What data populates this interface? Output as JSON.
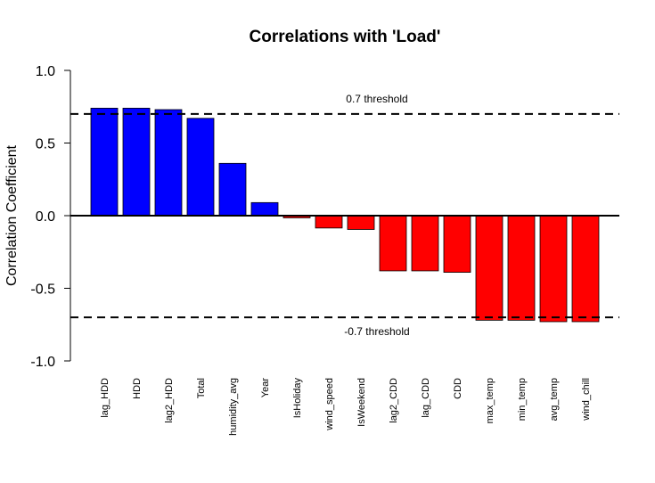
{
  "chart_data": {
    "type": "bar",
    "title": "Correlations with 'Load'",
    "xlabel": "",
    "ylabel": "Correlation Coefficient",
    "ylim": [
      -1.0,
      1.0
    ],
    "yticks": [
      "1.0",
      "0.5",
      "0.0",
      "-0.5",
      "-1.0"
    ],
    "ytick_values": [
      1.0,
      0.5,
      0.0,
      -0.5,
      -1.0
    ],
    "categories": [
      "lag_HDD",
      "HDD",
      "lag2_HDD",
      "Total",
      "humidity_avg",
      "Year",
      "IsHoliday",
      "wind_speed",
      "IsWeekend",
      "lag2_CDD",
      "lag_CDD",
      "CDD",
      "max_temp",
      "min_temp",
      "avg_temp",
      "wind_chill"
    ],
    "values": [
      0.74,
      0.74,
      0.73,
      0.67,
      0.36,
      0.09,
      -0.015,
      -0.085,
      -0.095,
      -0.38,
      -0.38,
      -0.39,
      -0.72,
      -0.72,
      -0.73,
      -0.73
    ],
    "colors": {
      "positive": "#0000ff",
      "negative": "#ff0000",
      "outline": "#000000"
    },
    "reference_lines": [
      {
        "value": 0.7,
        "label": "0.7 threshold",
        "style": "dashed"
      },
      {
        "value": -0.7,
        "label": "-0.7 threshold",
        "style": "dashed"
      }
    ],
    "grid": false,
    "legend": "none"
  }
}
